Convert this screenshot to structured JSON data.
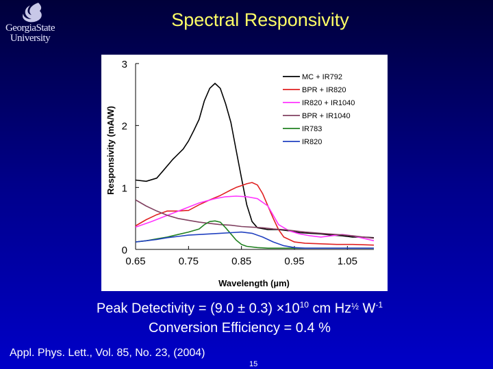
{
  "slide": {
    "title": "Spectral Responsivity",
    "logo_line1": "GeorgiaState",
    "logo_line2": "University",
    "caption1_prefix": "Peak Detectivity = (9.0 ± 0.3) ×10",
    "caption1_exp": "10",
    "caption1_unit": " cm Hz",
    "caption1_half": "½",
    "caption1_w": " W",
    "caption1_wexp": "-1",
    "caption2": "Conversion Efficiency = 0.4 %",
    "reference": "Appl. Phys. Lett., Vol. 85, No. 23, (2004)",
    "page_number": "15"
  },
  "chart_data": {
    "type": "line",
    "xlabel": "Wavelength (µm)",
    "ylabel": "Responsivity (mA/W)",
    "xlim": [
      0.65,
      1.1
    ],
    "ylim": [
      0,
      3
    ],
    "xticks": [
      "0.65",
      "0.75",
      "0.85",
      "0.95",
      "1.05"
    ],
    "yticks": [
      "0",
      "1",
      "2",
      "3"
    ],
    "grid": false,
    "legend_position": "top-right",
    "series": [
      {
        "name": "MC + IR792",
        "color": "#000000",
        "x": [
          0.65,
          0.67,
          0.69,
          0.7,
          0.72,
          0.74,
          0.75,
          0.76,
          0.77,
          0.78,
          0.79,
          0.8,
          0.81,
          0.82,
          0.83,
          0.84,
          0.85,
          0.86,
          0.87,
          0.88,
          0.9,
          0.92,
          0.94,
          0.96,
          0.98,
          1.0,
          1.02,
          1.04,
          1.06,
          1.08,
          1.1
        ],
        "y": [
          1.12,
          1.1,
          1.15,
          1.25,
          1.45,
          1.62,
          1.75,
          1.92,
          2.1,
          2.4,
          2.6,
          2.68,
          2.6,
          2.35,
          2.05,
          1.6,
          1.15,
          0.72,
          0.45,
          0.35,
          0.32,
          0.32,
          0.3,
          0.27,
          0.26,
          0.25,
          0.23,
          0.22,
          0.2,
          0.2,
          0.19
        ]
      },
      {
        "name": "BPR + IR820",
        "color": "#e02020",
        "x": [
          0.65,
          0.67,
          0.69,
          0.71,
          0.73,
          0.75,
          0.77,
          0.79,
          0.81,
          0.83,
          0.84,
          0.85,
          0.86,
          0.87,
          0.88,
          0.89,
          0.9,
          0.91,
          0.92,
          0.93,
          0.95,
          0.97,
          1.0,
          1.03,
          1.06,
          1.1
        ],
        "y": [
          0.38,
          0.48,
          0.56,
          0.62,
          0.62,
          0.63,
          0.72,
          0.8,
          0.87,
          0.96,
          1.0,
          1.03,
          1.06,
          1.08,
          1.04,
          0.9,
          0.7,
          0.5,
          0.32,
          0.2,
          0.12,
          0.1,
          0.09,
          0.08,
          0.08,
          0.07
        ]
      },
      {
        "name": "IR820 + IR1040",
        "color": "#ff33ff",
        "x": [
          0.65,
          0.68,
          0.71,
          0.74,
          0.77,
          0.8,
          0.82,
          0.84,
          0.86,
          0.88,
          0.9,
          0.91,
          0.92,
          0.94,
          0.96,
          0.98,
          1.0,
          1.02,
          1.04,
          1.06,
          1.08,
          1.1
        ],
        "y": [
          0.36,
          0.45,
          0.55,
          0.65,
          0.75,
          0.82,
          0.85,
          0.86,
          0.85,
          0.82,
          0.7,
          0.55,
          0.4,
          0.3,
          0.25,
          0.22,
          0.2,
          0.22,
          0.24,
          0.22,
          0.18,
          0.14
        ]
      },
      {
        "name": "BPR + IR1040",
        "color": "#804060",
        "x": [
          0.65,
          0.67,
          0.69,
          0.71,
          0.73,
          0.75,
          0.77,
          0.79,
          0.81,
          0.83,
          0.85,
          0.87,
          0.89,
          0.91,
          0.93,
          0.95,
          0.97,
          1.0,
          1.03,
          1.06,
          1.08,
          1.1
        ],
        "y": [
          0.8,
          0.7,
          0.62,
          0.55,
          0.5,
          0.47,
          0.44,
          0.42,
          0.4,
          0.39,
          0.37,
          0.36,
          0.35,
          0.33,
          0.32,
          0.3,
          0.28,
          0.26,
          0.24,
          0.22,
          0.2,
          0.18
        ]
      },
      {
        "name": "IR783",
        "color": "#208020",
        "x": [
          0.65,
          0.67,
          0.69,
          0.71,
          0.73,
          0.75,
          0.77,
          0.78,
          0.79,
          0.8,
          0.81,
          0.82,
          0.83,
          0.84,
          0.85,
          0.86,
          0.88,
          0.9,
          0.95,
          1.0,
          1.05,
          1.1
        ],
        "y": [
          0.12,
          0.14,
          0.17,
          0.2,
          0.24,
          0.28,
          0.33,
          0.4,
          0.45,
          0.46,
          0.44,
          0.35,
          0.25,
          0.15,
          0.08,
          0.05,
          0.03,
          0.02,
          0.02,
          0.02,
          0.02,
          0.02
        ]
      },
      {
        "name": "IR820",
        "color": "#2040c0",
        "x": [
          0.65,
          0.67,
          0.69,
          0.71,
          0.73,
          0.75,
          0.77,
          0.79,
          0.81,
          0.83,
          0.85,
          0.87,
          0.89,
          0.91,
          0.93,
          0.95,
          0.97,
          1.0,
          1.05,
          1.1
        ],
        "y": [
          0.12,
          0.14,
          0.16,
          0.19,
          0.21,
          0.23,
          0.24,
          0.25,
          0.26,
          0.27,
          0.28,
          0.26,
          0.2,
          0.12,
          0.06,
          0.03,
          0.02,
          0.02,
          0.02,
          0.02
        ]
      }
    ]
  }
}
